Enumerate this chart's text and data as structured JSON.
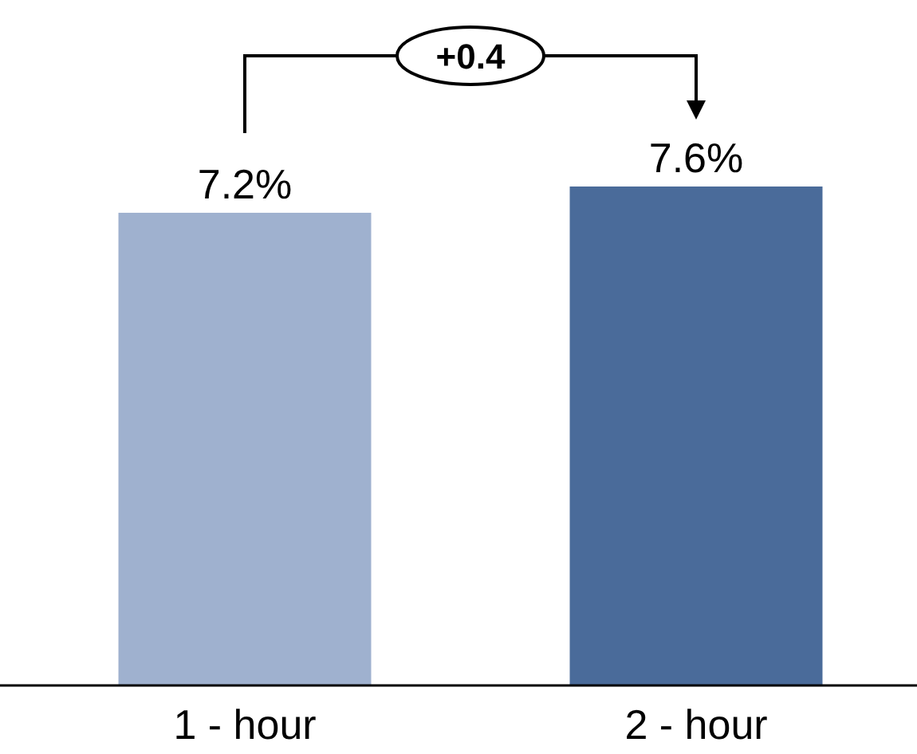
{
  "chart_data": {
    "type": "bar",
    "categories": [
      "1 - hour",
      "2 - hour"
    ],
    "values": [
      7.2,
      7.6
    ],
    "colors": [
      "#9fb1cf",
      "#4a6b9a"
    ],
    "value_labels": [
      "7.2%",
      "7.6%"
    ],
    "annotations": [
      "+0.4"
    ]
  }
}
